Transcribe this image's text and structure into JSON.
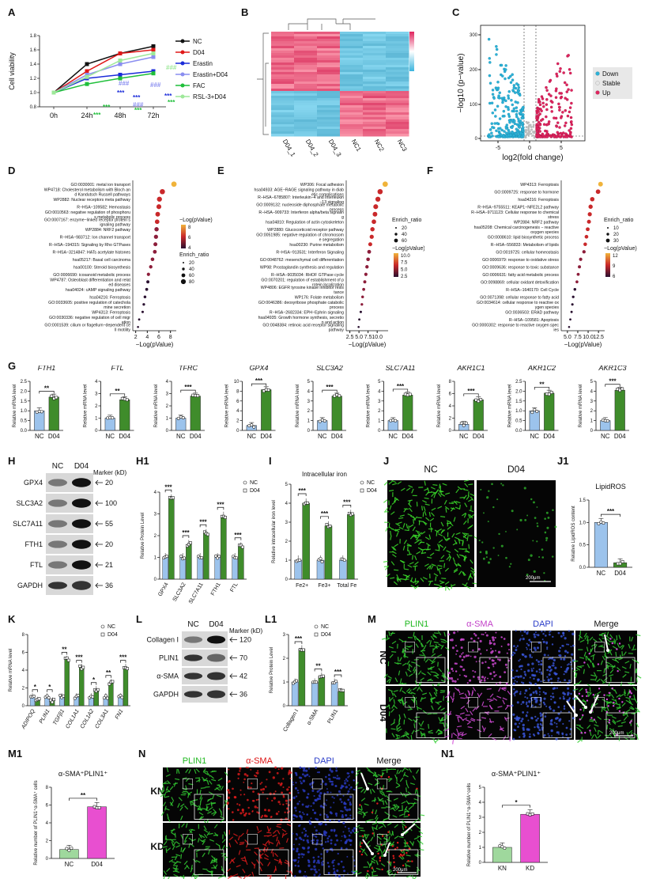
{
  "colors": {
    "nc": "#9cc3ec",
    "d04": "#3f8c2b",
    "pink": "#e84fd0",
    "kn": "#9fd89d",
    "lineNC": "#111111",
    "lineD04": "#e01919",
    "lineErastin": "#1a2bd9",
    "lineErastinD04": "#8a8ef0",
    "lineFAC": "#1fbf3a",
    "lineRSL": "#9ee89a"
  },
  "panels": {
    "A": "A",
    "B": "B",
    "C": "C",
    "D": "D",
    "E": "E",
    "F": "F",
    "G": "G",
    "H": "H",
    "H1": "H1",
    "I": "I",
    "J": "J",
    "J1": "J1",
    "K": "K",
    "L": "L",
    "L1": "L1",
    "M": "M",
    "M1": "M1",
    "N": "N",
    "N1": "N1"
  },
  "chart_data": [
    {
      "id": "A",
      "type": "line",
      "ylabel": "Cell viability",
      "categories": [
        "0h",
        "24h",
        "48h",
        "72h"
      ],
      "ylim": [
        0.8,
        1.8
      ],
      "yticks": [
        "0.8",
        "1.0",
        "1.2",
        "1.4",
        "1.6",
        "1.8"
      ],
      "series": [
        {
          "name": "NC",
          "color": "#111111",
          "values": [
            1.0,
            1.4,
            1.55,
            1.65
          ]
        },
        {
          "name": "D04",
          "color": "#e01919",
          "values": [
            1.0,
            1.3,
            1.55,
            1.6
          ]
        },
        {
          "name": "Erastin",
          "color": "#1a2bd9",
          "values": [
            1.0,
            1.2,
            1.25,
            1.3
          ]
        },
        {
          "name": "Erastin+D04",
          "color": "#8a8ef0",
          "values": [
            1.0,
            1.25,
            1.4,
            1.5
          ]
        },
        {
          "name": "FAC",
          "color": "#1fbf3a",
          "values": [
            1.0,
            1.12,
            1.2,
            1.27
          ]
        },
        {
          "name": "RSL-3+D04",
          "color": "#9ee89a",
          "values": [
            1.0,
            1.22,
            1.45,
            1.55
          ]
        }
      ],
      "annotations": [
        "###",
        "###",
        "###",
        "###",
        "***",
        "***",
        "***",
        "***",
        "***",
        "***",
        "***"
      ]
    },
    {
      "id": "B",
      "type": "heatmap",
      "columns": [
        "D04_1",
        "D04_2",
        "D04_3",
        "NC1",
        "NC2",
        "NC3"
      ]
    },
    {
      "id": "C",
      "type": "scatter",
      "xlabel": "log2(fold change)",
      "ylabel": "−log10 (p−value)",
      "xticks": [
        "-5",
        "0",
        "5"
      ],
      "yticks": [
        "0",
        "100",
        "200",
        "300"
      ],
      "legend": [
        "Down",
        "Stable",
        "Up"
      ]
    },
    {
      "id": "D",
      "type": "scatter",
      "xlabel": "−Log(pValue)",
      "xticks": [
        "2",
        "4",
        "6",
        "8"
      ],
      "terms": [
        "GO:0030001: metal ion transport",
        "WP4718: Cholesterol metabolism with Bloch and Kandutsch Russell pathways",
        "WP2882: Nuclear receptors meta pathway",
        "R−HSA−109582: Hemostasis",
        "GO:0010563: negative regulation of phosphorus metabolic process",
        "GO:0007167: enzyme−linked receptor protein signaling pathway",
        "WP2884: NRF2 pathway",
        "R−HSA−983712: Ion channel transport",
        "R−HSA−194315: Signaling by Rho GTPases",
        "R−HSA−3214847: HATs acetylate histones",
        "hsa05217: Basal cell carcinoma",
        "hsa00100: Steroid biosynthesis",
        "GO:0006690: icosanoid metabolic process",
        "WP4787: Osteoblast differentiation and related diseases",
        "hsa04024: cAMP signaling pathway",
        "hsa04216: Ferroptosis",
        "GO:0033605: positive regulation of catecholamine secretion",
        "WP4313: Ferroptosis",
        "GO:0030336: negative regulation of cell migration",
        "GO:0001539: cilium or flagellum−dependent cell motility"
      ],
      "values": [
        8.6,
        6.6,
        6.1,
        6.0,
        5.8,
        5.7,
        5.6,
        5.5,
        5.4,
        5.3,
        4.9,
        4.6,
        4.2,
        4.1,
        3.9,
        3.6,
        3.4,
        3.2,
        2.6,
        2.4
      ],
      "legend_color_title": "−Log(pValue)",
      "legend_color_ticks": [
        "8",
        "6",
        "4"
      ],
      "legend_size_title": "Enrich_ratio",
      "legend_size_ticks": [
        "20",
        "40",
        "60",
        "80"
      ]
    },
    {
      "id": "E",
      "type": "scatter",
      "xlabel": "−Log(pValue)",
      "xticks": [
        "2.5",
        "5.0",
        "7.5",
        "10.0"
      ],
      "terms": [
        "WP306: Focal adhesion",
        "hsa04933: AGE−RAGE signaling pathway in diabetic complications",
        "R−HSA−6785807: Interleukin−4 and Interleukin−13 signaling",
        "GO:0009132: nucleoside diphosphate metabolic process",
        "R−HSA−909733: Interferon alpha/beta signaling",
        "hsa04810: Regulation of actin cytoskeleton",
        "WP2880: Glucocorticoid receptor pathway",
        "GO:0051985: negative regulation of chromosome segregation",
        "hsa00230: Purine metabolism",
        "R−HSA−913531: Interferon Signaling",
        "GO:0048762: mesenchymal cell differentiation",
        "WP98: Prostaglandin synthesis and regulation",
        "R−HSA−9035034: RHOF GTPase cycle",
        "GO:0070201: regulation of establishment of protein localization",
        "WP4806: EGFR tyrosine kinase inhibitor resistance",
        "WP176: Folate metabolism",
        "GO:0046386: deoxyribose phosphate catabolic process",
        "R−HSA−2682334: EPH−Ephrin signaling",
        "hsa04935: Growth hormone synthesis, secretion and action",
        "GO:0048384: retinoic acid receptor signaling pathway"
      ],
      "values": [
        12.2,
        10.8,
        10.2,
        9.6,
        9.4,
        9.1,
        8.7,
        8.5,
        8.1,
        7.8,
        7.5,
        7.2,
        6.9,
        6.6,
        6.3,
        6.0,
        5.8,
        5.5,
        5.1,
        4.9
      ],
      "legend_size_title": "Enrich_ratio",
      "legend_size_ticks": [
        "20",
        "40",
        "60"
      ],
      "legend_color_title": "−Log(pValue)",
      "legend_color_ticks": [
        "10.0",
        "7.5",
        "5.0",
        "2.5"
      ]
    },
    {
      "id": "F",
      "type": "scatter",
      "xlabel": "−Log(pValue)",
      "xticks": [
        "5.0",
        "7.5",
        "10.0",
        "12.5"
      ],
      "terms": [
        "WP4313: Ferroptosis",
        "GO:0009725: response to hormone",
        "hsa04216: Ferroptosis",
        "R−HSA−9755511: KEAP1−NFE2L2 pathway",
        "R−HSA−9711123: Cellular response to chemical stress",
        "WP2884: NRF2 pathway",
        "hsa05208: Chemical carcinogenesis − reactive oxygen species",
        "GO:0008610: lipid biosynthetic process",
        "R−HSA−556833: Metabolism of lipids",
        "GO:0019725: cellular homeostasis",
        "GO:0006979: response to oxidative stress",
        "GO:0009636: response to toxic substance",
        "GO:0006631: fatty acid metabolic process",
        "GO:0098869: cellular oxidant detoxification",
        "R−HSA−1640170: Cell Cycle",
        "GO:0071398: cellular response to fatty acid",
        "GO:0034614: cellular response to reactive oxygen species",
        "GO:0036503: ERAD pathway",
        "R−HSA−109581: Apoptosis",
        "GO:0000302: response to reactive oxygen species"
      ],
      "values": [
        13.0,
        12.4,
        11.0,
        10.6,
        10.4,
        10.2,
        9.9,
        9.6,
        9.3,
        9.0,
        8.2,
        7.9,
        7.6,
        7.3,
        6.8,
        6.4,
        6.2,
        6.0,
        5.7,
        5.4
      ],
      "legend_size_title": "Enrich_ratio",
      "legend_size_ticks": [
        "10",
        "20",
        "30"
      ],
      "legend_color_title": "−Log(pValue)",
      "legend_color_ticks": [
        "12",
        "9",
        "6"
      ]
    },
    {
      "id": "G",
      "type": "bar",
      "genes": [
        {
          "name": "FTH1",
          "values": [
            1.0,
            1.7
          ],
          "ymax": 2.5,
          "yticks": [
            "0.0",
            "0.5",
            "1.0",
            "1.5",
            "2.0",
            "2.5"
          ],
          "sig": "**"
        },
        {
          "name": "FTL",
          "values": [
            1.0,
            2.5
          ],
          "ymax": 4,
          "yticks": [
            "0",
            "1",
            "2",
            "3",
            "4"
          ],
          "sig": "**"
        },
        {
          "name": "TFRC",
          "values": [
            1.0,
            2.8
          ],
          "ymax": 4,
          "yticks": [
            "0",
            "1",
            "2",
            "3",
            "4"
          ],
          "sig": "***"
        },
        {
          "name": "GPX4",
          "values": [
            1.0,
            8.3
          ],
          "ymax": 10,
          "yticks": [
            "0",
            "2",
            "4",
            "6",
            "8",
            "10"
          ],
          "sig": "***"
        },
        {
          "name": "SLC3A2",
          "values": [
            1.0,
            3.5
          ],
          "ymax": 5,
          "yticks": [
            "0",
            "1",
            "2",
            "3",
            "4",
            "5"
          ],
          "sig": "***"
        },
        {
          "name": "SLC7A11",
          "values": [
            1.0,
            3.6
          ],
          "ymax": 5,
          "yticks": [
            "0",
            "1",
            "2",
            "3",
            "4",
            "5"
          ],
          "sig": "***"
        },
        {
          "name": "AKR1C1",
          "values": [
            1.0,
            5.0
          ],
          "ymax": 8,
          "yticks": [
            "0",
            "2",
            "4",
            "6",
            "8"
          ],
          "sig": "***"
        },
        {
          "name": "AKR1C2",
          "values": [
            1.0,
            1.9
          ],
          "ymax": 2.5,
          "yticks": [
            "0.0",
            "0.5",
            "1.0",
            "1.5",
            "2.0",
            "2.5"
          ],
          "sig": "**"
        },
        {
          "name": "AKR1C3",
          "values": [
            1.0,
            4.1
          ],
          "ymax": 5,
          "yticks": [
            "0",
            "1",
            "2",
            "3",
            "4",
            "5"
          ],
          "sig": "***"
        }
      ],
      "ylabel": "Relative mRNA level",
      "categories": [
        "NC",
        "D04"
      ]
    },
    {
      "id": "H1",
      "type": "bar",
      "ylabel": "Relative Protein Level",
      "categories": [
        "GPX4",
        "SLC3A2",
        "SLC7A11",
        "FTH1",
        "FTL"
      ],
      "series": [
        {
          "name": "NC",
          "values": [
            1.0,
            1.0,
            1.0,
            1.0,
            1.0
          ]
        },
        {
          "name": "D04",
          "values": [
            3.7,
            1.6,
            2.1,
            2.9,
            1.5
          ]
        }
      ],
      "ylim": [
        0,
        4
      ],
      "yticks": [
        "0",
        "1",
        "2",
        "3",
        "4"
      ],
      "sig": [
        "***",
        "***",
        "***",
        "***",
        "***"
      ]
    },
    {
      "id": "I",
      "type": "bar",
      "title": "Intracellular iron",
      "ylabel": "Relative intracellular iron level",
      "categories": [
        "Fe2+",
        "Fe3+",
        "Total Fe"
      ],
      "series": [
        {
          "name": "NC",
          "values": [
            1.0,
            1.0,
            1.0
          ]
        },
        {
          "name": "D04",
          "values": [
            4.0,
            2.8,
            3.4
          ]
        }
      ],
      "ylim": [
        0,
        5
      ],
      "yticks": [
        "0",
        "1",
        "2",
        "3",
        "4",
        "5"
      ],
      "sig": [
        "***",
        "***",
        "***"
      ]
    },
    {
      "id": "J1",
      "type": "bar",
      "title": "LipidROS",
      "ylabel": "Relative LipidROS content",
      "categories": [
        "NC",
        "D04"
      ],
      "values": [
        1.0,
        0.1
      ],
      "ylim": [
        0,
        1.5
      ],
      "yticks": [
        "0.0",
        "0.5",
        "1.0",
        "1.5"
      ],
      "sig": "***"
    },
    {
      "id": "K",
      "type": "bar",
      "ylabel": "Relative mRNA level",
      "categories": [
        "ADIPOQ",
        "PLIN1",
        "TGFβ1",
        "COL1A1",
        "COL1A2",
        "COL3A1",
        "FN1"
      ],
      "series": [
        {
          "name": "NC",
          "values": [
            1.0,
            1.0,
            1.0,
            1.0,
            1.0,
            1.0,
            1.0
          ]
        },
        {
          "name": "D04",
          "values": [
            0.6,
            0.55,
            5.2,
            4.3,
            1.8,
            2.6,
            4.3
          ]
        }
      ],
      "ylim": [
        0,
        8
      ],
      "yticks": [
        "0",
        "2",
        "4",
        "6",
        "8"
      ],
      "sig": [
        "*",
        "*",
        "**",
        "***",
        "*",
        "**",
        "***"
      ]
    },
    {
      "id": "L1",
      "type": "bar",
      "ylabel": "Relative Protein Level",
      "categories": [
        "Collagen I",
        "α-SMA",
        "PLIN1"
      ],
      "series": [
        {
          "name": "NC",
          "values": [
            1.0,
            1.0,
            1.0
          ]
        },
        {
          "name": "D04",
          "values": [
            2.4,
            1.25,
            0.6
          ]
        }
      ],
      "ylim": [
        0,
        3
      ],
      "yticks": [
        "0",
        "1",
        "2",
        "3"
      ],
      "sig": [
        "***",
        "**",
        "***"
      ]
    },
    {
      "id": "M1",
      "type": "bar",
      "title": "α-SMA⁺PLIN1⁺",
      "ylabel": "Relative number of PLIN1⁺α-SMA⁺ cells",
      "categories": [
        "NC",
        "D04"
      ],
      "values": [
        1.0,
        5.8
      ],
      "ylim": [
        0,
        8
      ],
      "yticks": [
        "0",
        "2",
        "4",
        "6",
        "8"
      ],
      "sig": "**"
    },
    {
      "id": "N1",
      "type": "bar",
      "title": "α-SMA⁺PLIN1⁺",
      "ylabel": "Relative number of PLIN1⁺α-SMA⁺cells",
      "categories": [
        "KN",
        "KD"
      ],
      "values": [
        1.0,
        3.2
      ],
      "ylim": [
        0,
        5
      ],
      "yticks": [
        "0",
        "1",
        "2",
        "3",
        "4",
        "5"
      ],
      "sig": "*"
    }
  ],
  "legend_nc_d04": [
    "NC",
    "D04"
  ],
  "westernH": {
    "cols": [
      "NC",
      "D04"
    ],
    "marker_title": "Marker (kD)",
    "rows": [
      {
        "name": "GPX4",
        "kd": "20"
      },
      {
        "name": "SLC3A2",
        "kd": "100"
      },
      {
        "name": "SLC7A11",
        "kd": "55"
      },
      {
        "name": "FTH1",
        "kd": "20"
      },
      {
        "name": "FTL",
        "kd": "21"
      },
      {
        "name": "GAPDH",
        "kd": "36"
      }
    ]
  },
  "westernL": {
    "cols": [
      "NC",
      "D04"
    ],
    "marker_title": "Marker (kD)",
    "rows": [
      {
        "name": "Collagen I",
        "kd": "120"
      },
      {
        "name": "PLIN1",
        "kd": "70"
      },
      {
        "name": "α-SMA",
        "kd": "42"
      },
      {
        "name": "GAPDH",
        "kd": "36"
      }
    ]
  },
  "imgJ": {
    "nc": "NC",
    "d04": "D04",
    "scale": "200μm"
  },
  "imgM": {
    "cols": [
      "PLIN1",
      "α-SMA",
      "DAPI",
      "Merge"
    ],
    "rows": [
      "NC",
      "D04"
    ],
    "scale": "200μm"
  },
  "imgN": {
    "cols": [
      "PLIN1",
      "α-SMA",
      "DAPI",
      "Merge"
    ],
    "rows": [
      "KN",
      "KD"
    ],
    "scale": "200μm"
  }
}
